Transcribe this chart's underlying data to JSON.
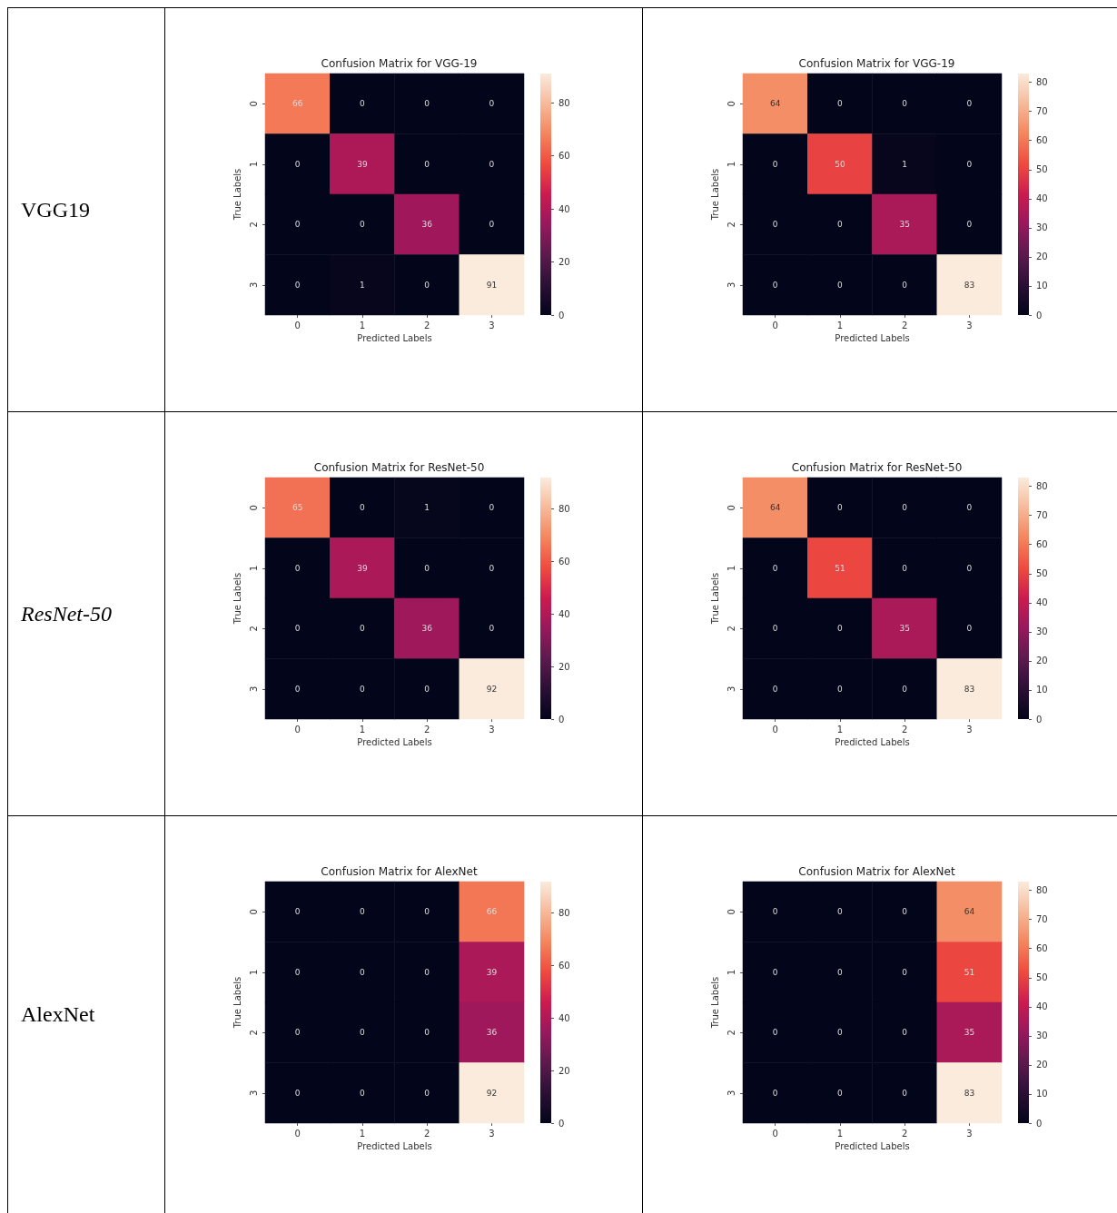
{
  "chart_data": [
    {
      "type": "heatmap",
      "title": "Confusion Matrix for VGG-19",
      "xlabel": "Predicted Labels",
      "ylabel": "True Labels",
      "annotations": [
        "VGG19"
      ],
      "categories": [
        "0",
        "1",
        "2",
        "3"
      ],
      "y_categories": [
        "0",
        "1",
        "2",
        "3"
      ],
      "cells": [
        [
          66,
          0,
          0,
          0
        ],
        [
          0,
          39,
          0,
          0
        ],
        [
          0,
          0,
          36,
          0
        ],
        [
          0,
          1,
          0,
          91
        ]
      ],
      "clim": [
        0,
        91
      ],
      "cticks": [
        0,
        20,
        40,
        60,
        80
      ],
      "data_labels": true
    },
    {
      "type": "heatmap",
      "title": "Confusion Matrix for VGG-19",
      "xlabel": "Predicted Labels",
      "ylabel": "True Labels",
      "categories": [
        "0",
        "1",
        "2",
        "3"
      ],
      "y_categories": [
        "0",
        "1",
        "2",
        "3"
      ],
      "cells": [
        [
          64,
          0,
          0,
          0
        ],
        [
          0,
          50,
          1,
          0
        ],
        [
          0,
          0,
          35,
          0
        ],
        [
          0,
          0,
          0,
          83
        ]
      ],
      "clim": [
        0,
        83
      ],
      "cticks": [
        0,
        10,
        20,
        30,
        40,
        50,
        60,
        70,
        80
      ],
      "data_labels": true
    },
    {
      "type": "heatmap",
      "title": "Confusion Matrix for ResNet-50",
      "xlabel": "Predicted Labels",
      "ylabel": "True Labels",
      "annotations": [
        "ResNet-50"
      ],
      "categories": [
        "0",
        "1",
        "2",
        "3"
      ],
      "y_categories": [
        "0",
        "1",
        "2",
        "3"
      ],
      "cells": [
        [
          65,
          0,
          1,
          0
        ],
        [
          0,
          39,
          0,
          0
        ],
        [
          0,
          0,
          36,
          0
        ],
        [
          0,
          0,
          0,
          92
        ]
      ],
      "clim": [
        0,
        92
      ],
      "cticks": [
        0,
        20,
        40,
        60,
        80
      ],
      "data_labels": true
    },
    {
      "type": "heatmap",
      "title": "Confusion Matrix for ResNet-50",
      "xlabel": "Predicted Labels",
      "ylabel": "True Labels",
      "categories": [
        "0",
        "1",
        "2",
        "3"
      ],
      "y_categories": [
        "0",
        "1",
        "2",
        "3"
      ],
      "cells": [
        [
          64,
          0,
          0,
          0
        ],
        [
          0,
          51,
          0,
          0
        ],
        [
          0,
          0,
          35,
          0
        ],
        [
          0,
          0,
          0,
          83
        ]
      ],
      "clim": [
        0,
        83
      ],
      "cticks": [
        0,
        10,
        20,
        30,
        40,
        50,
        60,
        70,
        80
      ],
      "data_labels": true
    },
    {
      "type": "heatmap",
      "title": "Confusion Matrix for AlexNet",
      "xlabel": "Predicted Labels",
      "ylabel": "True Labels",
      "annotations": [
        "AlexNet"
      ],
      "categories": [
        "0",
        "1",
        "2",
        "3"
      ],
      "y_categories": [
        "0",
        "1",
        "2",
        "3"
      ],
      "cells": [
        [
          0,
          0,
          0,
          66
        ],
        [
          0,
          0,
          0,
          39
        ],
        [
          0,
          0,
          0,
          36
        ],
        [
          0,
          0,
          0,
          92
        ]
      ],
      "clim": [
        0,
        92
      ],
      "cticks": [
        0,
        20,
        40,
        60,
        80
      ],
      "data_labels": true
    },
    {
      "type": "heatmap",
      "title": "Confusion Matrix for AlexNet",
      "xlabel": "Predicted Labels",
      "ylabel": "True Labels",
      "categories": [
        "0",
        "1",
        "2",
        "3"
      ],
      "y_categories": [
        "0",
        "1",
        "2",
        "3"
      ],
      "cells": [
        [
          0,
          0,
          0,
          64
        ],
        [
          0,
          0,
          0,
          51
        ],
        [
          0,
          0,
          0,
          35
        ],
        [
          0,
          0,
          0,
          83
        ]
      ],
      "clim": [
        0,
        83
      ],
      "cticks": [
        0,
        10,
        20,
        30,
        40,
        50,
        60,
        70,
        80
      ],
      "data_labels": true
    }
  ]
}
